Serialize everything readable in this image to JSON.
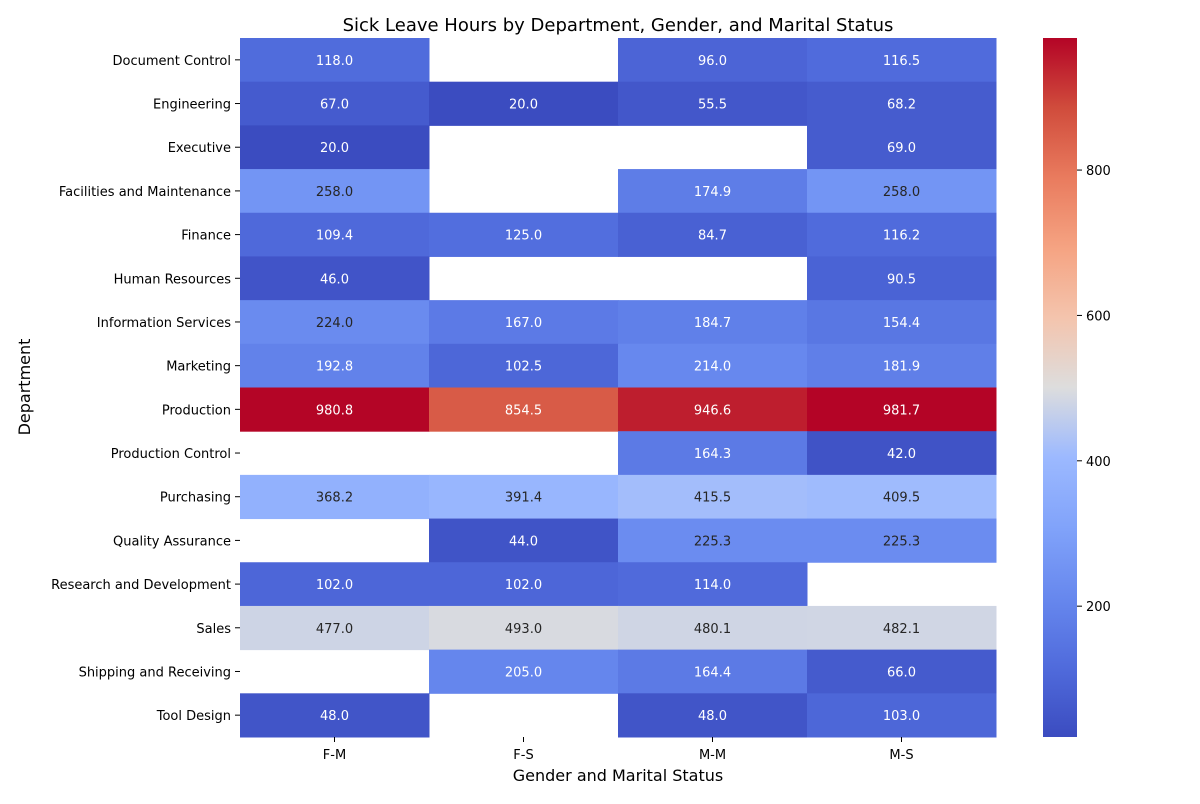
{
  "chart_data": {
    "type": "heatmap",
    "title": "Sick Leave Hours by Department, Gender, and Marital Status",
    "xlabel": "Gender and Marital Status",
    "ylabel": "Department",
    "x_categories": [
      "F-M",
      "F-S",
      "M-M",
      "M-S"
    ],
    "y_categories": [
      "Document Control",
      "Engineering",
      "Executive",
      "Facilities and Maintenance",
      "Finance",
      "Human Resources",
      "Information Services",
      "Marketing",
      "Production",
      "Production Control",
      "Purchasing",
      "Quality Assurance",
      "Research and Development",
      "Sales",
      "Shipping and Receiving",
      "Tool Design"
    ],
    "values": [
      [
        118.0,
        null,
        96.0,
        116.5
      ],
      [
        67.0,
        20.0,
        55.5,
        68.2
      ],
      [
        20.0,
        null,
        null,
        69.0
      ],
      [
        258.0,
        null,
        174.9,
        258.0
      ],
      [
        109.4,
        125.0,
        84.7,
        116.2
      ],
      [
        46.0,
        null,
        null,
        90.5
      ],
      [
        224.0,
        167.0,
        184.7,
        154.4
      ],
      [
        192.8,
        102.5,
        214.0,
        181.9
      ],
      [
        980.8,
        854.5,
        946.6,
        981.7
      ],
      [
        null,
        null,
        164.3,
        42.0
      ],
      [
        368.2,
        391.4,
        415.5,
        409.5
      ],
      [
        null,
        44.0,
        225.3,
        225.3
      ],
      [
        102.0,
        102.0,
        114.0,
        null
      ],
      [
        477.0,
        493.0,
        480.1,
        482.1
      ],
      [
        null,
        205.0,
        164.4,
        66.0
      ],
      [
        48.0,
        null,
        48.0,
        103.0
      ]
    ],
    "value_format": "0.1f",
    "colormap": "coolwarm",
    "color_range": [
      20.0,
      981.7
    ],
    "colorbar_ticks": [
      200,
      400,
      600,
      800
    ]
  }
}
